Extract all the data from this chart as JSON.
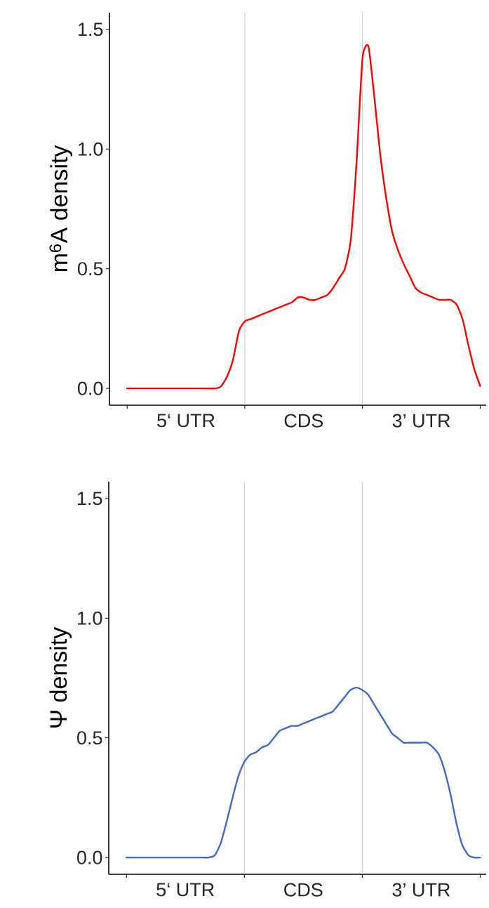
{
  "chart_data": [
    {
      "type": "line",
      "ylabel": "m$^{6}$A density",
      "ylim": [
        -0.07,
        1.57
      ],
      "categories": [
        null,
        null,
        null,
        null,
        null,
        null,
        null,
        null,
        null,
        null,
        "5‘ UTR",
        null,
        null,
        null,
        null,
        null,
        null,
        null,
        null,
        null,
        null,
        null,
        null,
        null,
        null,
        null,
        null,
        null,
        null,
        null,
        "CDS",
        null,
        null,
        null,
        null,
        null,
        null,
        null,
        null,
        null,
        null,
        null,
        null,
        null,
        null,
        null,
        null,
        null,
        null,
        null,
        "3’ UTR",
        null,
        null,
        null,
        null,
        null,
        null,
        null,
        null,
        null,
        null
      ],
      "yticks": [
        {
          "value": 0,
          "label": "0.0"
        },
        {
          "value": 0.5,
          "label": "0.5"
        },
        {
          "value": 1,
          "label": "1.0"
        },
        {
          "value": 1.5,
          "label": "1.5"
        }
      ],
      "grid": false,
      "series": [
        {
          "color": "#ff0000",
          "values": [
            0,
            0,
            0,
            0,
            0,
            0,
            0,
            0,
            0,
            0,
            0,
            0,
            0,
            0,
            0,
            0,
            0.01,
            0.05,
            0.12,
            0.24,
            0.28,
            0.29,
            0.3,
            0.31,
            0.32,
            0.33,
            0.34,
            0.35,
            0.36,
            0.38,
            0.38,
            0.37,
            0.37,
            0.38,
            0.39,
            0.42,
            0.46,
            0.5,
            0.62,
            0.95,
            1.38,
            1.43,
            1.22,
            0.98,
            0.8,
            0.66,
            0.58,
            0.52,
            0.47,
            0.42,
            0.4,
            0.39,
            0.38,
            0.37,
            0.37,
            0.37,
            0.35,
            0.29,
            0.18,
            0.08,
            0.01
          ]
        }
      ]
    },
    {
      "type": "line",
      "ylabel": "Ψ density",
      "ylim": [
        -0.07,
        1.57
      ],
      "categories": [
        null,
        null,
        null,
        null,
        null,
        null,
        null,
        null,
        null,
        null,
        "5‘ UTR",
        null,
        null,
        null,
        null,
        null,
        null,
        null,
        null,
        null,
        null,
        null,
        null,
        null,
        null,
        null,
        null,
        null,
        null,
        null,
        "CDS",
        null,
        null,
        null,
        null,
        null,
        null,
        null,
        null,
        null,
        null,
        null,
        null,
        null,
        null,
        null,
        null,
        null,
        null,
        null,
        "3’ UTR",
        null,
        null,
        null,
        null,
        null,
        null,
        null,
        null,
        null,
        null
      ],
      "yticks": [
        {
          "value": 0,
          "label": "0.0"
        },
        {
          "value": 0.5,
          "label": "0.5"
        },
        {
          "value": 1,
          "label": "1.0"
        },
        {
          "value": 1.5,
          "label": "1.5"
        }
      ],
      "grid": false,
      "series": [
        {
          "color": "#4169c8",
          "values": [
            0,
            0,
            0,
            0,
            0,
            0,
            0,
            0,
            0,
            0,
            0,
            0,
            0,
            0,
            0,
            0.01,
            0.06,
            0.15,
            0.25,
            0.34,
            0.4,
            0.43,
            0.44,
            0.46,
            0.47,
            0.5,
            0.53,
            0.54,
            0.55,
            0.55,
            0.56,
            0.57,
            0.58,
            0.59,
            0.6,
            0.61,
            0.64,
            0.67,
            0.7,
            0.71,
            0.7,
            0.68,
            0.64,
            0.6,
            0.56,
            0.52,
            0.5,
            0.48,
            0.48,
            0.48,
            0.48,
            0.48,
            0.46,
            0.43,
            0.36,
            0.26,
            0.14,
            0.05,
            0.01,
            0,
            0
          ]
        }
      ]
    }
  ]
}
